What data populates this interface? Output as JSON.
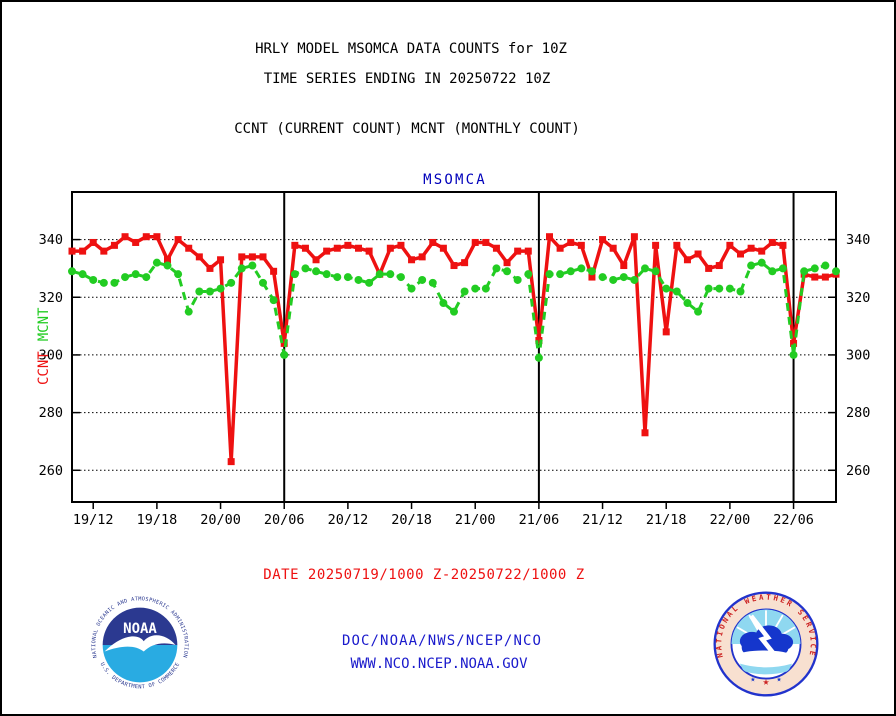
{
  "header": {
    "title_line1": "HRLY MODEL MSOMCA DATA COUNTS for 10Z",
    "title_line2": "TIME SERIES ENDING IN 20250722 10Z",
    "subtitle": "CCNT (CURRENT COUNT) MCNT (MONTHLY COUNT)"
  },
  "footer": {
    "date_range": "DATE 20250719/1000 Z-20250722/1000 Z",
    "org_line": "DOC/NOAA/NWS/NCEP/NCO",
    "url_line": "WWW.NCO.NCEP.NOAA.GOV"
  },
  "logos": {
    "noaa": {
      "label": "NOAA",
      "ring_text_top": "NATIONAL OCEANIC AND ATMOSPHERIC ADMINISTRATION",
      "ring_text_bottom": "U.S. DEPARTMENT OF COMMERCE"
    },
    "nws": {
      "ring_text": "NATIONAL WEATHER SERVICE"
    }
  },
  "colors": {
    "ccnt_red": "#ee1111",
    "mcnt_green": "#22cc22",
    "link_blue": "#1a1acc",
    "chart_title_blue": "#0000bb",
    "axis_black": "#000000"
  },
  "chart_data": {
    "type": "line",
    "title": "MSOMCA",
    "xlabel": "",
    "ylabel": "CCNT MCNT",
    "grid": "horizontal-dotted",
    "legend_position": "left-axis-rotated",
    "ylim": [
      249,
      356.5
    ],
    "y_ticks": [
      260,
      280,
      300,
      320,
      340
    ],
    "x_tick_labels": [
      "19/12",
      "19/18",
      "20/00",
      "20/06",
      "20/12",
      "20/18",
      "21/00",
      "21/06",
      "21/12",
      "21/18",
      "22/00",
      "22/06"
    ],
    "day_boundary_lines": [
      "20/06",
      "21/06",
      "22/06"
    ],
    "x": [
      "19/10",
      "19/11",
      "19/12",
      "19/13",
      "19/14",
      "19/15",
      "19/16",
      "19/17",
      "19/18",
      "19/19",
      "19/20",
      "19/21",
      "19/22",
      "19/23",
      "20/00",
      "20/01",
      "20/02",
      "20/03",
      "20/04",
      "20/05",
      "20/06",
      "20/07",
      "20/08",
      "20/09",
      "20/10",
      "20/11",
      "20/12",
      "20/13",
      "20/14",
      "20/15",
      "20/16",
      "20/17",
      "20/18",
      "20/19",
      "20/20",
      "20/21",
      "20/22",
      "20/23",
      "21/00",
      "21/01",
      "21/02",
      "21/03",
      "21/04",
      "21/05",
      "21/06",
      "21/07",
      "21/08",
      "21/09",
      "21/10",
      "21/11",
      "21/12",
      "21/13",
      "21/14",
      "21/15",
      "21/16",
      "21/17",
      "21/18",
      "21/19",
      "21/20",
      "21/21",
      "21/22",
      "21/23",
      "22/00",
      "22/01",
      "22/02",
      "22/03",
      "22/04",
      "22/05",
      "22/06",
      "22/07",
      "22/08",
      "22/09",
      "22/10"
    ],
    "series": [
      {
        "name": "CCNT",
        "color": "#ee1111",
        "style": "solid",
        "marker": "square",
        "values": [
          336,
          336,
          339,
          336,
          338,
          341,
          339,
          341,
          341,
          333,
          340,
          337,
          334,
          330,
          333,
          263,
          334,
          334,
          334,
          329,
          304,
          338,
          337,
          333,
          336,
          337,
          338,
          337,
          336,
          328,
          337,
          338,
          333,
          334,
          339,
          337,
          331,
          332,
          339,
          339,
          337,
          332,
          336,
          336,
          305,
          341,
          337,
          339,
          338,
          327,
          340,
          337,
          331,
          341,
          273,
          338,
          308,
          338,
          333,
          335,
          330,
          331,
          338,
          335,
          337,
          336,
          339,
          338,
          304,
          328,
          327,
          327,
          328
        ]
      },
      {
        "name": "MCNT",
        "color": "#22cc22",
        "style": "dashed",
        "marker": "circle",
        "values": [
          329,
          328,
          326,
          325,
          325,
          327,
          328,
          327,
          332,
          331,
          328,
          315,
          322,
          322,
          323,
          325,
          330,
          331,
          325,
          319,
          300,
          328,
          330,
          329,
          328,
          327,
          327,
          326,
          325,
          328,
          328,
          327,
          323,
          326,
          325,
          318,
          315,
          322,
          323,
          323,
          330,
          329,
          326,
          328,
          299,
          328,
          328,
          329,
          330,
          329,
          327,
          326,
          327,
          326,
          330,
          329,
          323,
          322,
          318,
          315,
          323,
          323,
          323,
          322,
          331,
          332,
          329,
          330,
          300,
          329,
          330,
          331,
          329
        ]
      }
    ]
  }
}
